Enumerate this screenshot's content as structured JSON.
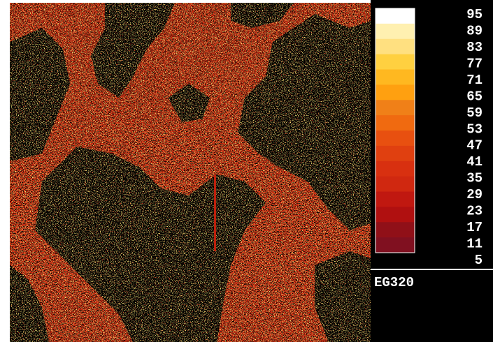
{
  "colorbar": {
    "ticks": [
      "95",
      "89",
      "83",
      "77",
      "71",
      "65",
      "59",
      "53",
      "47",
      "41",
      "35",
      "29",
      "23",
      "17",
      "11",
      "5"
    ],
    "label": "EG320"
  }
}
